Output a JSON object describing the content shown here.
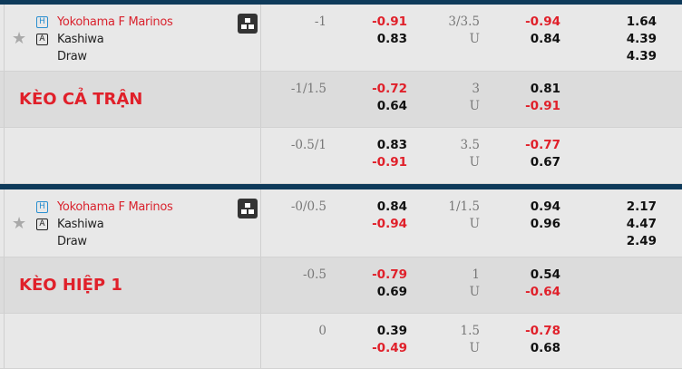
{
  "colors": {
    "negative": "#e0202a",
    "positive": "#111111",
    "header_bar": "#0e3a5a"
  },
  "sections": [
    {
      "label": "KÈO CẢ TRẬN",
      "home_badge": "H",
      "away_badge": "A",
      "home": "Yokohama F Marinos",
      "away": "Kashiwa",
      "draw": "Draw",
      "rows": [
        {
          "hdp": "-1",
          "hdp_home": "-0.91",
          "hdp_away": "0.83",
          "ou": "3/3.5",
          "ou_under": "U",
          "ou_over_odds": "-0.94",
          "ou_under_odds": "0.84",
          "x12": [
            "1.64",
            "4.39",
            "4.39"
          ]
        },
        {
          "hdp": "-1/1.5",
          "hdp_home": "-0.72",
          "hdp_away": "0.64",
          "ou": "3",
          "ou_under": "U",
          "ou_over_odds": "0.81",
          "ou_under_odds": "-0.91",
          "x12": []
        },
        {
          "hdp": "-0.5/1",
          "hdp_home": "0.83",
          "hdp_away": "-0.91",
          "ou": "3.5",
          "ou_under": "U",
          "ou_over_odds": "-0.77",
          "ou_under_odds": "0.67",
          "x12": []
        }
      ]
    },
    {
      "label": "KÈO HIỆP 1",
      "home_badge": "H",
      "away_badge": "A",
      "home": "Yokohama F Marinos",
      "away": "Kashiwa",
      "draw": "Draw",
      "rows": [
        {
          "hdp": "-0/0.5",
          "hdp_home": "0.84",
          "hdp_away": "-0.94",
          "ou": "1/1.5",
          "ou_under": "U",
          "ou_over_odds": "0.94",
          "ou_under_odds": "0.96",
          "x12": [
            "2.17",
            "4.47",
            "2.49"
          ]
        },
        {
          "hdp": "-0.5",
          "hdp_home": "-0.79",
          "hdp_away": "0.69",
          "ou": "1",
          "ou_under": "U",
          "ou_over_odds": "0.54",
          "ou_under_odds": "-0.64",
          "x12": []
        },
        {
          "hdp": "0",
          "hdp_home": "0.39",
          "hdp_away": "-0.49",
          "ou": "1.5",
          "ou_under": "U",
          "ou_over_odds": "-0.78",
          "ou_under_odds": "0.68",
          "x12": []
        }
      ]
    }
  ]
}
